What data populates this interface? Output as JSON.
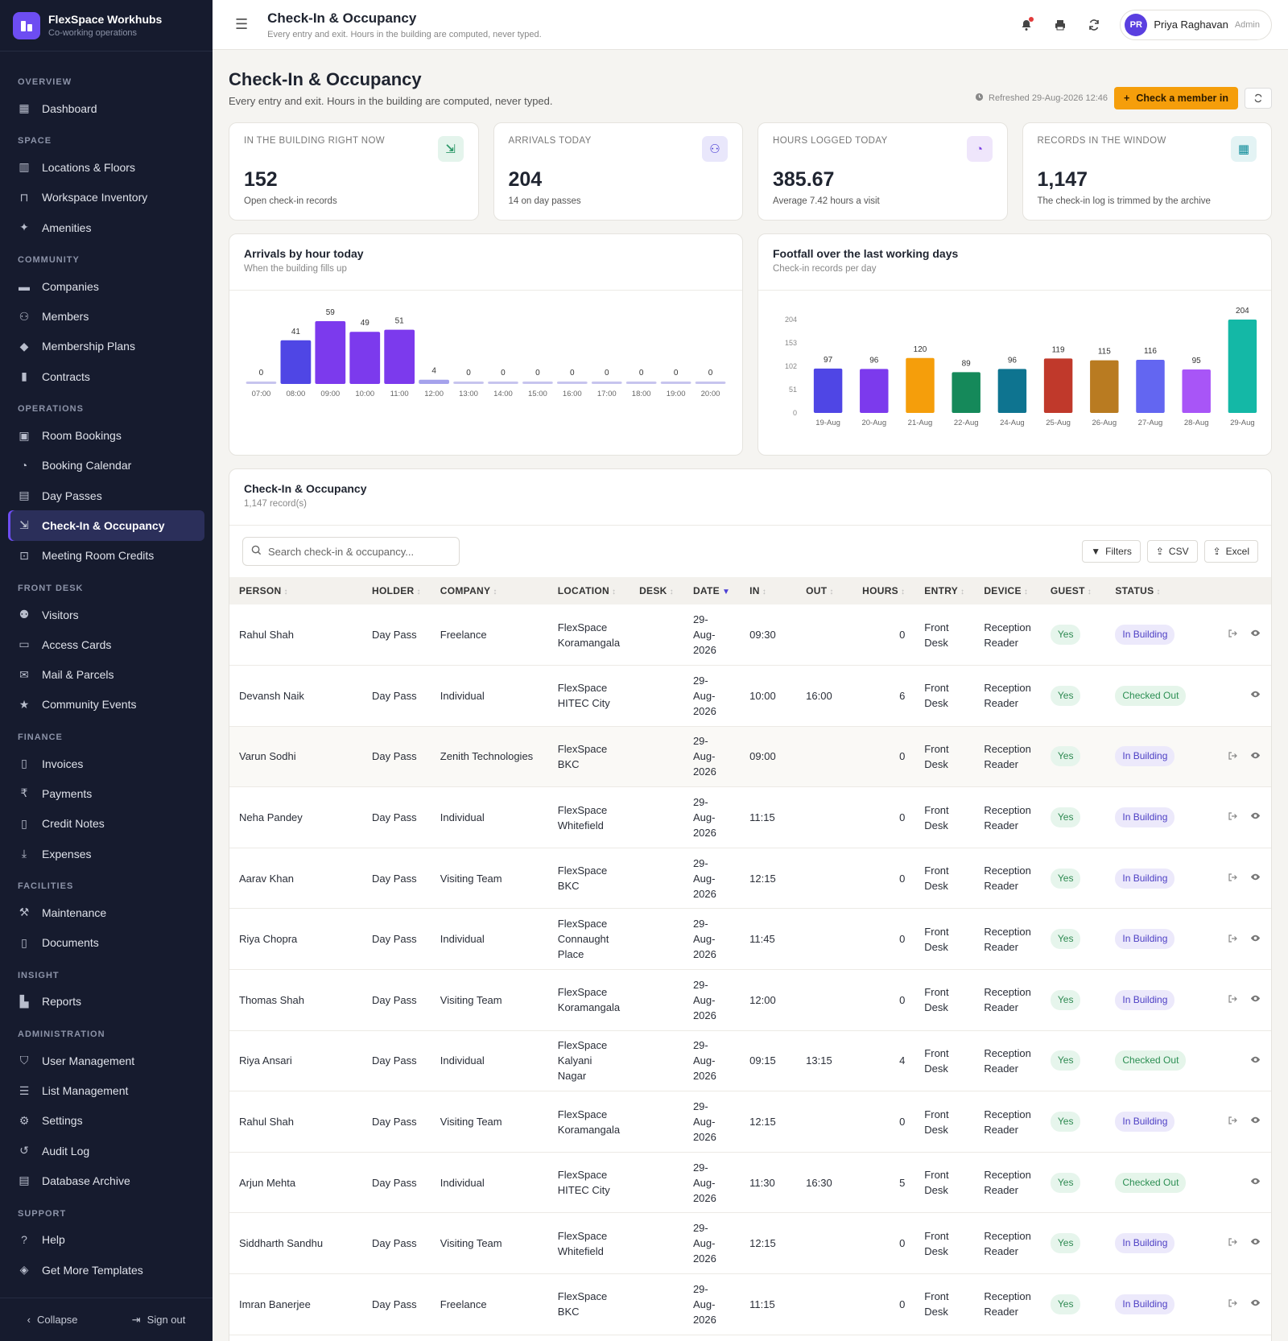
{
  "brand": {
    "name": "FlexSpace Workhubs",
    "tagline": "Co-working operations"
  },
  "nav": {
    "sections": [
      {
        "title": "OVERVIEW",
        "items": [
          {
            "label": "Dashboard",
            "icon": "grid-icon"
          }
        ]
      },
      {
        "title": "SPACE",
        "items": [
          {
            "label": "Locations & Floors",
            "icon": "building-icon"
          },
          {
            "label": "Workspace Inventory",
            "icon": "desk-icon"
          },
          {
            "label": "Amenities",
            "icon": "sparkle-icon"
          }
        ]
      },
      {
        "title": "COMMUNITY",
        "items": [
          {
            "label": "Companies",
            "icon": "briefcase-icon"
          },
          {
            "label": "Members",
            "icon": "users-icon"
          },
          {
            "label": "Membership Plans",
            "icon": "tag-icon"
          },
          {
            "label": "Contracts",
            "icon": "file-icon"
          }
        ]
      },
      {
        "title": "OPERATIONS",
        "items": [
          {
            "label": "Room Bookings",
            "icon": "calendar-icon"
          },
          {
            "label": "Booking Calendar",
            "icon": "clock-icon"
          },
          {
            "label": "Day Passes",
            "icon": "ticket-icon"
          },
          {
            "label": "Check-In & Occupancy",
            "icon": "login-icon",
            "active": true
          },
          {
            "label": "Meeting Room Credits",
            "icon": "credit-icon"
          }
        ]
      },
      {
        "title": "FRONT DESK",
        "items": [
          {
            "label": "Visitors",
            "icon": "visitor-icon"
          },
          {
            "label": "Access Cards",
            "icon": "card-icon"
          },
          {
            "label": "Mail & Parcels",
            "icon": "mail-icon"
          },
          {
            "label": "Community Events",
            "icon": "star-icon"
          }
        ]
      },
      {
        "title": "FINANCE",
        "items": [
          {
            "label": "Invoices",
            "icon": "invoice-icon"
          },
          {
            "label": "Payments",
            "icon": "rupee-icon"
          },
          {
            "label": "Credit Notes",
            "icon": "note-icon"
          },
          {
            "label": "Expenses",
            "icon": "download-icon"
          }
        ]
      },
      {
        "title": "FACILITIES",
        "items": [
          {
            "label": "Maintenance",
            "icon": "wrench-icon"
          },
          {
            "label": "Documents",
            "icon": "document-icon"
          }
        ]
      },
      {
        "title": "INSIGHT",
        "items": [
          {
            "label": "Reports",
            "icon": "chart-icon"
          }
        ]
      },
      {
        "title": "ADMINISTRATION",
        "items": [
          {
            "label": "User Management",
            "icon": "shield-icon"
          },
          {
            "label": "List Management",
            "icon": "list-icon"
          },
          {
            "label": "Settings",
            "icon": "gear-icon"
          },
          {
            "label": "Audit Log",
            "icon": "history-icon"
          },
          {
            "label": "Database Archive",
            "icon": "archive-icon"
          }
        ]
      },
      {
        "title": "SUPPORT",
        "items": [
          {
            "label": "Help",
            "icon": "help-icon"
          },
          {
            "label": "Get More Templates",
            "icon": "template-icon"
          }
        ]
      }
    ],
    "collapse_label": "Collapse",
    "signout_label": "Sign out"
  },
  "topbar": {
    "title": "Check-In & Occupancy",
    "subtitle": "Every entry and exit. Hours in the building are computed, never typed.",
    "user_initials": "PR",
    "user_name": "Priya Raghavan",
    "user_role": "Admin"
  },
  "page": {
    "title": "Check-In & Occupancy",
    "subtitle": "Every entry and exit. Hours in the building are computed, never typed.",
    "refreshed": "Refreshed 29-Aug-2026 12:46",
    "primary_action": "Check a member in"
  },
  "stats": [
    {
      "label": "IN THE BUILDING RIGHT NOW",
      "value": "152",
      "note": "Open check-in records",
      "icon": "login-icon",
      "color": "#2f9a6b",
      "bg": "#e4f4ec"
    },
    {
      "label": "ARRIVALS TODAY",
      "value": "204",
      "note": "14 on day passes",
      "icon": "users-icon",
      "color": "#4b3fd4",
      "bg": "#e9e7fb"
    },
    {
      "label": "HOURS LOGGED TODAY",
      "value": "385.67",
      "note": "Average 7.42 hours a visit",
      "icon": "clock-icon",
      "color": "#7b3fe4",
      "bg": "#efe6fb"
    },
    {
      "label": "RECORDS IN THE WINDOW",
      "value": "1,147",
      "note": "The check-in log is trimmed by the archive",
      "icon": "grid-icon",
      "color": "#0f8c9a",
      "bg": "#e3f3f4"
    }
  ],
  "chart_data": [
    {
      "type": "bar",
      "title": "Arrivals by hour today",
      "subtitle": "When the building fills up",
      "categories": [
        "07:00",
        "08:00",
        "09:00",
        "10:00",
        "11:00",
        "12:00",
        "13:00",
        "14:00",
        "15:00",
        "16:00",
        "17:00",
        "18:00",
        "19:00",
        "20:00"
      ],
      "values": [
        0,
        41,
        59,
        49,
        51,
        4,
        0,
        0,
        0,
        0,
        0,
        0,
        0,
        0
      ],
      "colors": [
        "#c7c4ee",
        "#4f46e5",
        "#7c3aed",
        "#7c3aed",
        "#7c3aed",
        "#a5a2ec",
        "#c7c4ee",
        "#c7c4ee",
        "#c7c4ee",
        "#c7c4ee",
        "#c7c4ee",
        "#c7c4ee",
        "#c7c4ee",
        "#c7c4ee"
      ],
      "ylim": [
        0,
        59
      ],
      "grid": false
    },
    {
      "type": "bar",
      "title": "Footfall over the last working days",
      "subtitle": "Check-in records per day",
      "categories": [
        "19-Aug",
        "20-Aug",
        "21-Aug",
        "22-Aug",
        "24-Aug",
        "25-Aug",
        "26-Aug",
        "27-Aug",
        "28-Aug",
        "29-Aug"
      ],
      "values": [
        97,
        96,
        120,
        89,
        96,
        119,
        115,
        116,
        95,
        204
      ],
      "colors": [
        "#4f46e5",
        "#7c3aed",
        "#f59e0b",
        "#15895a",
        "#0e7490",
        "#c0392b",
        "#b97b21",
        "#6366f1",
        "#a855f7",
        "#14b8a6"
      ],
      "yticks": [
        0,
        51,
        102,
        153,
        204
      ],
      "ylim": [
        0,
        204
      ],
      "grid": false
    }
  ],
  "table": {
    "title": "Check-In & Occupancy",
    "count": "1,147 record(s)",
    "search_placeholder": "Search check-in & occupancy...",
    "filters_label": "Filters",
    "csv_label": "CSV",
    "excel_label": "Excel",
    "columns": [
      "PERSON",
      "HOLDER",
      "COMPANY",
      "LOCATION",
      "DESK",
      "DATE",
      "IN",
      "OUT",
      "HOURS",
      "ENTRY",
      "DEVICE",
      "GUEST",
      "STATUS"
    ],
    "rows": [
      {
        "person": "Rahul Shah",
        "holder": "Day Pass",
        "company": "Freelance",
        "location": "FlexSpace Koramangala",
        "desk": "",
        "date": "29-Aug-2026",
        "in": "09:30",
        "out": "",
        "hours": "0",
        "entry": "Front Desk",
        "device": "Reception Reader",
        "guest": "Yes",
        "status": "In Building"
      },
      {
        "person": "Devansh Naik",
        "holder": "Day Pass",
        "company": "Individual",
        "location": "FlexSpace HITEC City",
        "desk": "",
        "date": "29-Aug-2026",
        "in": "10:00",
        "out": "16:00",
        "hours": "6",
        "entry": "Front Desk",
        "device": "Reception Reader",
        "guest": "Yes",
        "status": "Checked Out"
      },
      {
        "person": "Varun Sodhi",
        "holder": "Day Pass",
        "company": "Zenith Technologies",
        "location": "FlexSpace BKC",
        "desk": "",
        "date": "29-Aug-2026",
        "in": "09:00",
        "out": "",
        "hours": "0",
        "entry": "Front Desk",
        "device": "Reception Reader",
        "guest": "Yes",
        "status": "In Building"
      },
      {
        "person": "Neha Pandey",
        "holder": "Day Pass",
        "company": "Individual",
        "location": "FlexSpace Whitefield",
        "desk": "",
        "date": "29-Aug-2026",
        "in": "11:15",
        "out": "",
        "hours": "0",
        "entry": "Front Desk",
        "device": "Reception Reader",
        "guest": "Yes",
        "status": "In Building"
      },
      {
        "person": "Aarav Khan",
        "holder": "Day Pass",
        "company": "Visiting Team",
        "location": "FlexSpace BKC",
        "desk": "",
        "date": "29-Aug-2026",
        "in": "12:15",
        "out": "",
        "hours": "0",
        "entry": "Front Desk",
        "device": "Reception Reader",
        "guest": "Yes",
        "status": "In Building"
      },
      {
        "person": "Riya Chopra",
        "holder": "Day Pass",
        "company": "Individual",
        "location": "FlexSpace Connaught Place",
        "desk": "",
        "date": "29-Aug-2026",
        "in": "11:45",
        "out": "",
        "hours": "0",
        "entry": "Front Desk",
        "device": "Reception Reader",
        "guest": "Yes",
        "status": "In Building"
      },
      {
        "person": "Thomas Shah",
        "holder": "Day Pass",
        "company": "Visiting Team",
        "location": "FlexSpace Koramangala",
        "desk": "",
        "date": "29-Aug-2026",
        "in": "12:00",
        "out": "",
        "hours": "0",
        "entry": "Front Desk",
        "device": "Reception Reader",
        "guest": "Yes",
        "status": "In Building"
      },
      {
        "person": "Riya Ansari",
        "holder": "Day Pass",
        "company": "Individual",
        "location": "FlexSpace Kalyani Nagar",
        "desk": "",
        "date": "29-Aug-2026",
        "in": "09:15",
        "out": "13:15",
        "hours": "4",
        "entry": "Front Desk",
        "device": "Reception Reader",
        "guest": "Yes",
        "status": "Checked Out"
      },
      {
        "person": "Rahul Shah",
        "holder": "Day Pass",
        "company": "Visiting Team",
        "location": "FlexSpace Koramangala",
        "desk": "",
        "date": "29-Aug-2026",
        "in": "12:15",
        "out": "",
        "hours": "0",
        "entry": "Front Desk",
        "device": "Reception Reader",
        "guest": "Yes",
        "status": "In Building"
      },
      {
        "person": "Arjun Mehta",
        "holder": "Day Pass",
        "company": "Individual",
        "location": "FlexSpace HITEC City",
        "desk": "",
        "date": "29-Aug-2026",
        "in": "11:30",
        "out": "16:30",
        "hours": "5",
        "entry": "Front Desk",
        "device": "Reception Reader",
        "guest": "Yes",
        "status": "Checked Out"
      },
      {
        "person": "Siddharth Sandhu",
        "holder": "Day Pass",
        "company": "Visiting Team",
        "location": "FlexSpace Whitefield",
        "desk": "",
        "date": "29-Aug-2026",
        "in": "12:15",
        "out": "",
        "hours": "0",
        "entry": "Front Desk",
        "device": "Reception Reader",
        "guest": "Yes",
        "status": "In Building"
      },
      {
        "person": "Imran Banerjee",
        "holder": "Day Pass",
        "company": "Freelance",
        "location": "FlexSpace BKC",
        "desk": "",
        "date": "29-Aug-2026",
        "in": "11:15",
        "out": "",
        "hours": "0",
        "entry": "Front Desk",
        "device": "Reception Reader",
        "guest": "Yes",
        "status": "In Building"
      }
    ]
  }
}
